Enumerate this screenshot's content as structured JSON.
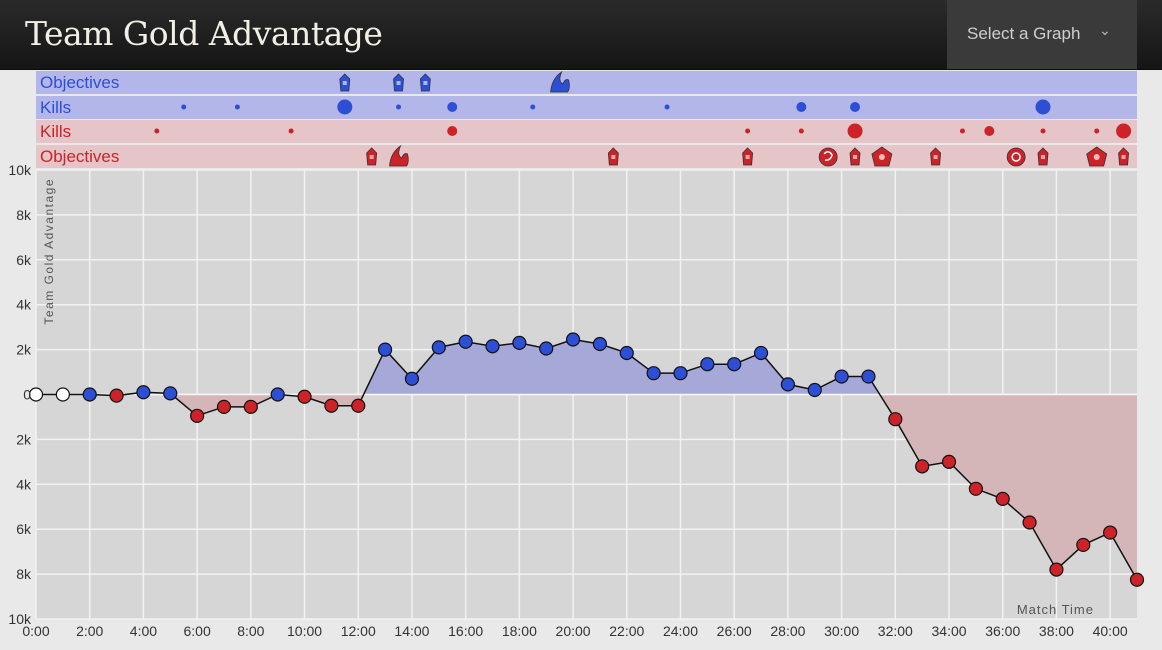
{
  "header": {
    "title": "Team Gold Advantage",
    "select_label": "Select a Graph"
  },
  "colors": {
    "blue": "#2d4fd6",
    "red": "#cc2228",
    "blue_band": "#b3b6e8",
    "red_band": "#e5c5c8",
    "blue_fill": "#a6a8d8",
    "red_fill": "#d4b6b8",
    "plot_bg": "#d6d6d6"
  },
  "chart_data": {
    "type": "line",
    "title": "Team Gold Advantage",
    "xlabel": "Match Time",
    "ylabel": "Team Gold Advantage",
    "xlim": [
      0,
      41
    ],
    "ylim": [
      -10000,
      10000
    ],
    "grid": true,
    "x_ticks": [
      "0:00",
      "2:00",
      "4:00",
      "6:00",
      "8:00",
      "10:00",
      "12:00",
      "14:00",
      "16:00",
      "18:00",
      "20:00",
      "22:00",
      "24:00",
      "26:00",
      "28:00",
      "30:00",
      "32:00",
      "34:00",
      "36:00",
      "38:00",
      "40:00"
    ],
    "y_ticks": [
      "10k",
      "8k",
      "6k",
      "4k",
      "2k",
      "0",
      "2k",
      "4k",
      "6k",
      "8k",
      "10k"
    ],
    "series": [
      {
        "x": [
          0,
          1,
          2,
          3,
          4,
          5,
          6,
          7,
          8,
          9,
          10,
          11,
          12,
          13,
          14,
          15,
          16,
          17,
          18,
          19,
          20,
          21,
          22,
          23,
          24,
          25,
          26,
          27,
          28,
          29,
          30,
          31,
          32,
          33,
          34,
          35,
          36,
          37,
          38,
          39,
          40,
          41
        ],
        "values": [
          0,
          0,
          0,
          -50,
          100,
          50,
          -950,
          -550,
          -550,
          0,
          -100,
          -500,
          -500,
          2000,
          700,
          2100,
          2350,
          2150,
          2300,
          2050,
          2450,
          2250,
          1850,
          950,
          950,
          1350,
          1350,
          1850,
          450,
          200,
          800,
          800,
          -1100,
          -3200,
          -3000,
          -4200,
          -4650,
          -5700,
          -7800,
          -6700,
          -6150,
          -8250
        ]
      }
    ],
    "bands": [
      {
        "label": "Objectives",
        "team": "blue"
      },
      {
        "label": "Kills",
        "team": "blue"
      },
      {
        "label": "Kills",
        "team": "red"
      },
      {
        "label": "Objectives",
        "team": "red"
      }
    ],
    "events": {
      "blue_objectives": [
        {
          "t": 11.5,
          "icon": "tower-icon"
        },
        {
          "t": 13.5,
          "icon": "tower-icon"
        },
        {
          "t": 14.5,
          "icon": "tower-icon"
        },
        {
          "t": 19.5,
          "icon": "dragon-icon"
        }
      ],
      "blue_kills": [
        {
          "t": 5.5,
          "size": 1
        },
        {
          "t": 7.5,
          "size": 1
        },
        {
          "t": 11.5,
          "size": 3
        },
        {
          "t": 13.5,
          "size": 1
        },
        {
          "t": 15.5,
          "size": 2
        },
        {
          "t": 18.5,
          "size": 1
        },
        {
          "t": 23.5,
          "size": 1
        },
        {
          "t": 28.5,
          "size": 2
        },
        {
          "t": 30.5,
          "size": 2
        },
        {
          "t": 37.5,
          "size": 3
        }
      ],
      "red_kills": [
        {
          "t": 4.5,
          "size": 1
        },
        {
          "t": 9.5,
          "size": 1
        },
        {
          "t": 15.5,
          "size": 2
        },
        {
          "t": 26.5,
          "size": 1
        },
        {
          "t": 28.5,
          "size": 1
        },
        {
          "t": 30.5,
          "size": 3
        },
        {
          "t": 34.5,
          "size": 1
        },
        {
          "t": 35.5,
          "size": 2
        },
        {
          "t": 37.5,
          "size": 1
        },
        {
          "t": 39.5,
          "size": 1
        },
        {
          "t": 40.5,
          "size": 3
        }
      ],
      "red_objectives": [
        {
          "t": 12.5,
          "icon": "tower-icon"
        },
        {
          "t": 13.5,
          "icon": "dragon-icon"
        },
        {
          "t": 21.5,
          "icon": "tower-icon"
        },
        {
          "t": 26.5,
          "icon": "tower-icon"
        },
        {
          "t": 29.5,
          "icon": "herald-icon"
        },
        {
          "t": 30.5,
          "icon": "tower-icon"
        },
        {
          "t": 31.5,
          "icon": "inhibitor-icon"
        },
        {
          "t": 33.5,
          "icon": "tower-icon"
        },
        {
          "t": 36.5,
          "icon": "baron-icon"
        },
        {
          "t": 37.5,
          "icon": "tower-icon"
        },
        {
          "t": 39.5,
          "icon": "inhibitor-icon"
        },
        {
          "t": 40.5,
          "icon": "tower-icon"
        }
      ]
    }
  }
}
